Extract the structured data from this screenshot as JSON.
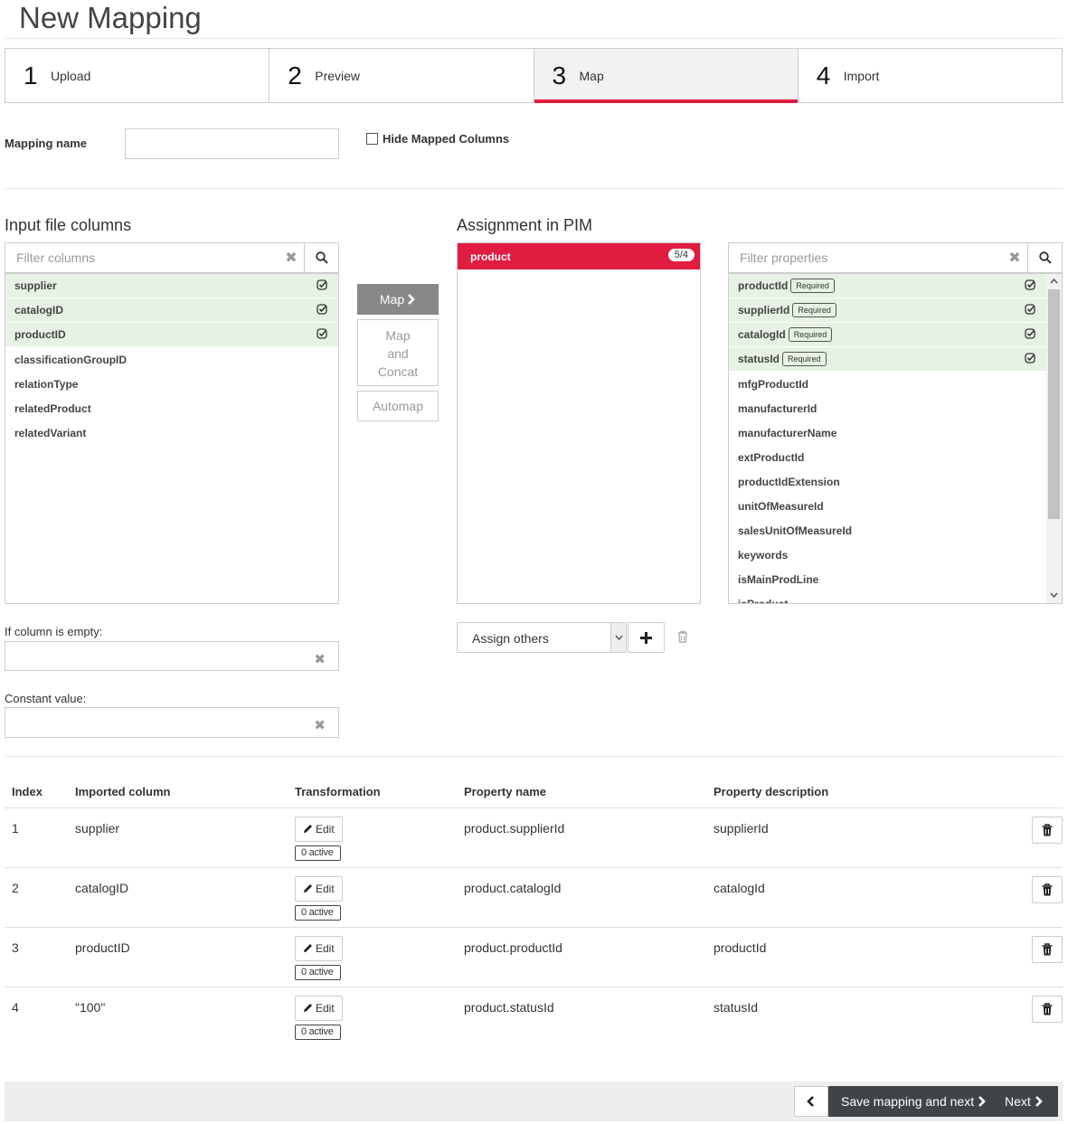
{
  "page": {
    "title": "New Mapping"
  },
  "steps": [
    {
      "num": "1",
      "label": "Upload"
    },
    {
      "num": "2",
      "label": "Preview"
    },
    {
      "num": "3",
      "label": "Map"
    },
    {
      "num": "4",
      "label": "Import"
    }
  ],
  "active_step": "3",
  "form": {
    "mapping_name_label": "Mapping name",
    "mapping_name_value": "",
    "hide_mapped_label": "Hide Mapped Columns",
    "hide_mapped_checked": false
  },
  "input_columns": {
    "heading": "Input file columns",
    "filter_placeholder": "Filter columns",
    "items": [
      {
        "label": "supplier",
        "mapped": true
      },
      {
        "label": "catalogID",
        "mapped": true
      },
      {
        "label": "productID",
        "mapped": true
      },
      {
        "label": "classificationGroupID",
        "mapped": false
      },
      {
        "label": "relationType",
        "mapped": false
      },
      {
        "label": "relatedProduct",
        "mapped": false
      },
      {
        "label": "relatedVariant",
        "mapped": false
      }
    ]
  },
  "actions": {
    "map": "Map",
    "map_and": "Map",
    "map_and2": "and",
    "map_and3": "Concat",
    "automap": "Automap"
  },
  "assignment": {
    "heading": "Assignment in PIM",
    "entity": "product",
    "count": "5/4",
    "assign_select": "Assign others"
  },
  "properties": {
    "filter_placeholder": "Filter properties",
    "required_label": "Required",
    "items": [
      {
        "label": "productId",
        "required": true,
        "mapped": true
      },
      {
        "label": "supplierId",
        "required": true,
        "mapped": true
      },
      {
        "label": "catalogId",
        "required": true,
        "mapped": true
      },
      {
        "label": "statusId",
        "required": true,
        "mapped": true
      },
      {
        "label": "mfgProductId",
        "required": false,
        "mapped": false
      },
      {
        "label": "manufacturerId",
        "required": false,
        "mapped": false
      },
      {
        "label": "manufacturerName",
        "required": false,
        "mapped": false
      },
      {
        "label": "extProductId",
        "required": false,
        "mapped": false
      },
      {
        "label": "productIdExtension",
        "required": false,
        "mapped": false
      },
      {
        "label": "unitOfMeasureId",
        "required": false,
        "mapped": false
      },
      {
        "label": "salesUnitOfMeasureId",
        "required": false,
        "mapped": false
      },
      {
        "label": "keywords",
        "required": false,
        "mapped": false
      },
      {
        "label": "isMainProdLine",
        "required": false,
        "mapped": false
      },
      {
        "label": "isProduct",
        "required": false,
        "mapped": false
      }
    ]
  },
  "empty": {
    "label": "If column is empty:",
    "value": ""
  },
  "constant": {
    "label": "Constant value:",
    "value": ""
  },
  "table": {
    "headers": [
      "Index",
      "Imported column",
      "Transformation",
      "Property name",
      "Property description"
    ],
    "edit_label": "Edit",
    "rows": [
      {
        "index": "1",
        "column": "supplier",
        "active": "0 active",
        "property": "product.supplierId",
        "description": "supplierId"
      },
      {
        "index": "2",
        "column": "catalogID",
        "active": "0 active",
        "property": "product.catalogId",
        "description": "catalogId"
      },
      {
        "index": "3",
        "column": "productID",
        "active": "0 active",
        "property": "product.productId",
        "description": "productId"
      },
      {
        "index": "4",
        "column": "\"100\"",
        "active": "0 active",
        "property": "product.statusId",
        "description": "statusId"
      }
    ]
  },
  "footer": {
    "save_next": "Save mapping and next",
    "next": "Next"
  },
  "colors": {
    "accent": "#e01d40",
    "mapped_bg": "#e6f3e4",
    "dark_button": "#3f4448"
  }
}
